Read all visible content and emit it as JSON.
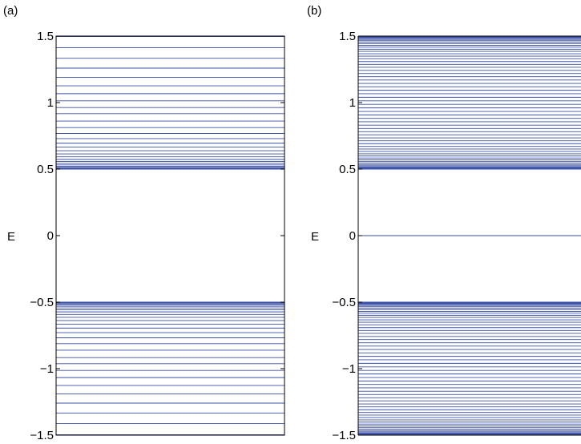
{
  "chart_data": [
    {
      "panel_label": "(a)",
      "type": "line",
      "xlabel": "",
      "ylabel": "E",
      "ylim": [
        -1.5,
        1.5
      ],
      "yticks": [
        -1.5,
        -1,
        -0.5,
        0,
        0.5,
        1,
        1.5
      ],
      "ytick_labels": [
        "−1.5",
        "−1",
        "−0.5",
        "0",
        "0.5",
        "1",
        "1.5"
      ],
      "line_color": "#3a4fa8",
      "energy_levels": [
        -1.497,
        -1.412,
        -1.333,
        -1.259,
        -1.19,
        -1.126,
        -1.067,
        -1.013,
        -0.963,
        -0.917,
        -0.861,
        -0.812,
        -0.768,
        -0.729,
        -0.695,
        -0.665,
        -0.638,
        -0.614,
        -0.592,
        -0.573,
        -0.557,
        -0.543,
        -0.531,
        -0.521,
        -0.513,
        -0.507,
        -0.503,
        -0.5,
        0.5,
        0.503,
        0.507,
        0.513,
        0.521,
        0.531,
        0.543,
        0.557,
        0.573,
        0.592,
        0.614,
        0.638,
        0.665,
        0.695,
        0.729,
        0.768,
        0.812,
        0.861,
        0.917,
        0.963,
        1.013,
        1.067,
        1.126,
        1.19,
        1.259,
        1.333,
        1.412,
        1.497
      ]
    },
    {
      "panel_label": "(b)",
      "type": "line",
      "xlabel": "",
      "ylabel": "E",
      "ylim": [
        -1.5,
        1.5
      ],
      "yticks": [
        -1.5,
        -1,
        -0.5,
        0,
        0.5,
        1,
        1.5
      ],
      "ytick_labels": [
        "−1.5",
        "−1",
        "−0.5",
        "0",
        "0.5",
        "1",
        "1.5"
      ],
      "line_color": "#3a4fa8",
      "band_edge_inner": 0.5,
      "band_edge_outer": 1.5,
      "levels_per_band": 60,
      "zero_mode": 0
    }
  ]
}
